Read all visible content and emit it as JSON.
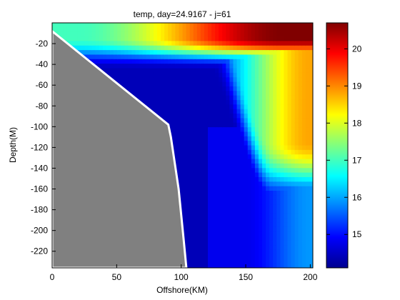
{
  "chart_data": {
    "type": "heatmap",
    "title": "temp, day=24.9167 - j=61",
    "xlabel": "Offshore(KM)",
    "ylabel": "Depth(M)",
    "xlim": [
      0,
      202
    ],
    "ylim": [
      -236,
      0
    ],
    "x_ticks": [
      0,
      50,
      100,
      150,
      200
    ],
    "y_ticks": [
      -20,
      -40,
      -60,
      -80,
      -100,
      -120,
      -140,
      -160,
      -180,
      -200,
      -220
    ],
    "colorbar": {
      "range": [
        14.1,
        20.7
      ],
      "ticks": [
        15,
        16,
        17,
        18,
        19,
        20
      ],
      "colormap": "jet"
    },
    "land_color": "#808080",
    "bathymetry": {
      "x_km": [
        0,
        90,
        92,
        95,
        98,
        100,
        102,
        104
      ],
      "depth_m": [
        -8,
        -98,
        -110,
        -135,
        -160,
        -185,
        -210,
        -236
      ]
    },
    "temperature_model": {
      "surface_nearshore": 17.0,
      "surface_offshore": 20.7,
      "deep_value": 14.4,
      "upper_band_top_m": -3,
      "upwelling_front_km": [
        20,
        50,
        90,
        150,
        200
      ]
    }
  }
}
